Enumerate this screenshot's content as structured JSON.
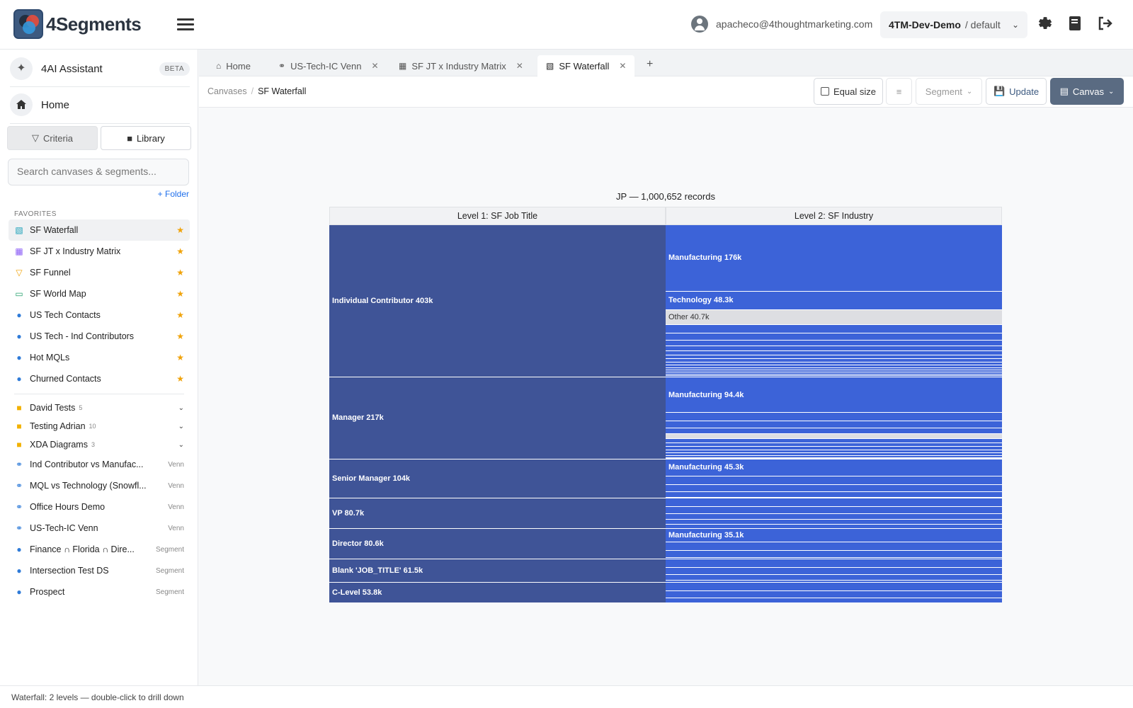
{
  "app": {
    "name": "4Segments"
  },
  "header": {
    "user_email": "apacheco@4thoughtmarketing.com",
    "org_name": "4TM-Dev-Demo",
    "org_scope": "/ default"
  },
  "sidebar": {
    "assistant_label": "4AI Assistant",
    "assistant_badge": "BETA",
    "home_label": "Home",
    "criteria_label": "Criteria",
    "library_label": "Library",
    "search_placeholder": "Search canvases & segments...",
    "folder_link": "+ Folder",
    "favorites_title": "FAVORITES",
    "favorites": [
      {
        "label": "SF Waterfall",
        "icon": "waterfall-icon"
      },
      {
        "label": "SF JT x Industry Matrix",
        "icon": "matrix-icon"
      },
      {
        "label": "SF Funnel",
        "icon": "funnel-icon"
      },
      {
        "label": "SF World Map",
        "icon": "map-icon"
      },
      {
        "label": "US Tech Contacts",
        "icon": "segment-icon"
      },
      {
        "label": "US Tech - Ind Contributors",
        "icon": "segment-icon"
      },
      {
        "label": "Hot MQLs",
        "icon": "segment-icon"
      },
      {
        "label": "Churned Contacts",
        "icon": "segment-icon"
      }
    ],
    "folders": [
      {
        "label": "David Tests",
        "count": "5"
      },
      {
        "label": "Testing Adrian",
        "count": "10"
      },
      {
        "label": "XDA Diagrams",
        "count": "3"
      }
    ],
    "library": [
      {
        "label": "Ind Contributor vs Manufac...",
        "tag": "Venn"
      },
      {
        "label": "MQL vs Technology (Snowfl...",
        "tag": "Venn"
      },
      {
        "label": "Office Hours Demo",
        "tag": "Venn"
      },
      {
        "label": "US-Tech-IC Venn",
        "tag": "Venn"
      },
      {
        "label": "Finance ∩ Florida ∩ Dire...",
        "tag": "Segment"
      },
      {
        "label": "Intersection Test DS",
        "tag": "Segment"
      },
      {
        "label": "Prospect",
        "tag": "Segment"
      }
    ]
  },
  "tabs": [
    {
      "label": "Home",
      "closable": false
    },
    {
      "label": "US-Tech-IC Venn",
      "closable": true
    },
    {
      "label": "SF JT x Industry Matrix",
      "closable": true
    },
    {
      "label": "SF Waterfall",
      "closable": true,
      "active": true
    }
  ],
  "toolbar": {
    "breadcrumb_root": "Canvases",
    "breadcrumb_current": "SF Waterfall",
    "equal_size_label": "Equal size",
    "segment_label": "Segment",
    "update_label": "Update",
    "canvas_label": "Canvas"
  },
  "chart_data": {
    "type": "waterfall",
    "title": "JP — 1,000,652 records",
    "levels": [
      "Level 1: SF Job Title",
      "Level 2: SF Industry"
    ],
    "level1": [
      {
        "label": "Individual Contributor 403k",
        "value": 403
      },
      {
        "label": "Manager 217k",
        "value": 217
      },
      {
        "label": "Senior Manager 104k",
        "value": 104
      },
      {
        "label": "VP 80.7k",
        "value": 80.7
      },
      {
        "label": "Director 80.6k",
        "value": 80.6
      },
      {
        "label": "Blank 'JOB_TITLE' 61.5k",
        "value": 61.5
      },
      {
        "label": "C-Level 53.8k",
        "value": 53.8
      }
    ],
    "level2": [
      [
        {
          "label": "Manufacturing 176k",
          "value": 176
        },
        {
          "label": "Technology 48.3k",
          "value": 48.3
        },
        {
          "label": "Other 40.7k",
          "value": 40.7,
          "other": true
        }
      ],
      [
        {
          "label": "Manufacturing 94.4k",
          "value": 94.4
        }
      ],
      [
        {
          "label": "Manufacturing 45.3k",
          "value": 45.3
        }
      ],
      [],
      [
        {
          "label": "Manufacturing 35.1k",
          "value": 35.1
        }
      ],
      [],
      []
    ],
    "colors": {
      "level1": "#3f5497",
      "level2": "#3c63d8",
      "other": "#dddee2"
    }
  },
  "status": {
    "text": "Waterfall: 2 levels — double-click to drill down"
  }
}
